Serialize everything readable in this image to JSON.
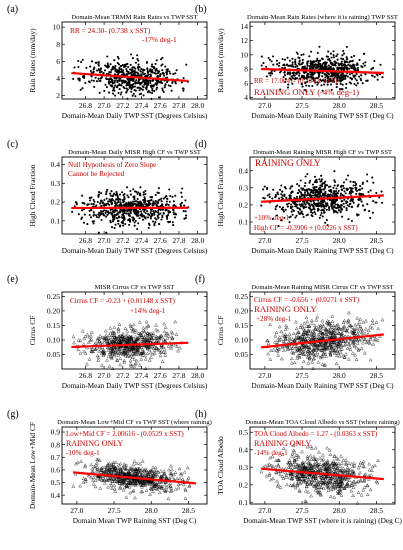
{
  "colors": {
    "fit_line": "#ff0000",
    "annotation": "#cc0000",
    "axis": "#000000",
    "marker": "#000000"
  },
  "chart_data": [
    {
      "panel": "(a)",
      "type": "scatter",
      "marker": "dot",
      "title": "Domain-Mean TRMM Rain Rates vs TWP SST",
      "xlabel": "Domain-Mean Daily TWP SST (Degrees Celsius)",
      "ylabel": "Rain Rates (mm/day)",
      "xlim": [
        26.55,
        28.1
      ],
      "ylim": [
        1.6,
        10.6
      ],
      "xticks": [
        "26.8",
        "27.0",
        "27.2",
        "27.4",
        "27.6",
        "27.8",
        "28.0"
      ],
      "yticks": [
        "2",
        "4",
        "6",
        "8",
        "10"
      ],
      "fit": {
        "intercept": 24.3,
        "slope": -0.738
      },
      "cloud": {
        "xc": 27.3,
        "xs": 0.25,
        "xmin": 26.65,
        "xmax": 27.9,
        "ys": 0.95,
        "n": 600,
        "seed": 11
      },
      "annotations": [
        "RR = 24.30- (0.738 x SST)",
        "-17% deg-1"
      ]
    },
    {
      "panel": "(b)",
      "type": "scatter",
      "marker": "dot",
      "title": "Domain-Mean Rain Rates (where it is raining) TWP SST",
      "xlabel": "Domain-Mean Daily Raining TWP SST (Deg C)",
      "ylabel": "Rain Rates (mm/day)",
      "xlim": [
        26.8,
        28.75
      ],
      "ylim": [
        3.8,
        14.6
      ],
      "xticks": [
        "27.0",
        "27.5",
        "28.0",
        "28.5"
      ],
      "yticks": [
        "4",
        "6",
        "8",
        "10",
        "12",
        "14"
      ],
      "fit": {
        "intercept": 17.0041,
        "slope": -0.334
      },
      "cloud": {
        "xc": 27.75,
        "xs": 0.33,
        "xmin": 26.95,
        "xmax": 28.6,
        "ys": 1.1,
        "n": 650,
        "seed": 23
      },
      "annotations": [
        "RR = 17.0041- (0.334 x SST)",
        "RAINING ONLY (-4% deg-1)"
      ]
    },
    {
      "panel": "(c)",
      "type": "scatter",
      "marker": "dot",
      "title": "Domain-Mean Daily MISR High CF vs TWP SST",
      "xlabel": "Domain-Mean Daily TWP SST (Degrees Celsius)",
      "ylabel": "High Cloud Fraction",
      "xlim": [
        26.55,
        28.1
      ],
      "ylim": [
        0.03,
        0.44
      ],
      "xticks": [
        "26.8",
        "27.0",
        "27.2",
        "27.4",
        "27.6",
        "27.8",
        "28.0"
      ],
      "yticks": [
        "0.1",
        "0.2",
        "0.3",
        "0.4"
      ],
      "fit": {
        "intercept": 0.142,
        "slope": 0.001
      },
      "cloud": {
        "xc": 27.3,
        "xs": 0.25,
        "xmin": 26.65,
        "xmax": 27.9,
        "ys": 0.045,
        "n": 600,
        "seed": 37
      },
      "annotations": [
        "Null Hypothesis of Zero Slope",
        "Cannot be Rejected"
      ]
    },
    {
      "panel": "(d)",
      "type": "scatter",
      "marker": "dot",
      "title": "Domain-Mean Raining MISR High CF vs TWP SST",
      "xlabel": "Domain-Mean Daily Raining TWP SST (Deg C)",
      "ylabel": "High Cloud Fraction",
      "xlim": [
        26.8,
        28.75
      ],
      "ylim": [
        0.03,
        0.48
      ],
      "xticks": [
        "27.0",
        "27.5",
        "28.0",
        "28.5"
      ],
      "yticks": [
        "0.1",
        "0.2",
        "0.3",
        "0.4"
      ],
      "fit": {
        "intercept": -0.3906,
        "slope": 0.0226
      },
      "cloud": {
        "xc": 27.75,
        "xs": 0.33,
        "xmin": 26.95,
        "xmax": 28.6,
        "ys": 0.055,
        "n": 650,
        "seed": 41
      },
      "annotations": [
        "RAINING ONLY",
        "+10% deg-1",
        "High CF = -0.3906 + (0.0226 x SST)"
      ]
    },
    {
      "panel": "(e)",
      "type": "scatter",
      "marker": "triangle",
      "title": "MISR Cirrus CF vs TWP SST",
      "xlabel": "Domain-Mean Daily TWP SST (Degrees Celsius)",
      "ylabel": "Cirrus CF",
      "xlim": [
        26.55,
        28.1
      ],
      "ylim": [
        0.0,
        0.265
      ],
      "xticks": [
        "26.8",
        "27.0",
        "27.2",
        "27.4",
        "27.6",
        "27.8",
        "28.0"
      ],
      "yticks": [
        "0.05",
        "0.10",
        "0.15",
        "0.20",
        "0.25"
      ],
      "fit": {
        "intercept": -0.23,
        "slope": 0.01148
      },
      "cloud": {
        "xc": 27.3,
        "xs": 0.25,
        "xmin": 26.65,
        "xmax": 27.9,
        "ys": 0.028,
        "n": 600,
        "seed": 53
      },
      "annotations": [
        "Cirrus CF = -0.23 + (0.01148 x SST)",
        "+14% deg-1"
      ]
    },
    {
      "panel": "(f)",
      "type": "scatter",
      "marker": "triangle",
      "title": "Domain-Mean Raining MISR Cirrus CF vs TWP SST",
      "xlabel": "Domain-Mean Daily Raining TWP SST (Deg C)",
      "ylabel": "Cirrus CF",
      "xlim": [
        26.8,
        28.75
      ],
      "ylim": [
        0.0,
        0.265
      ],
      "xticks": [
        "27.0",
        "27.5",
        "28.0",
        "28.5"
      ],
      "yticks": [
        "0.05",
        "0.10",
        "0.15",
        "0.20",
        "0.25"
      ],
      "fit": {
        "intercept": -0.656,
        "slope": 0.0271
      },
      "cloud": {
        "xc": 27.75,
        "xs": 0.33,
        "xmin": 26.95,
        "xmax": 28.6,
        "ys": 0.032,
        "n": 650,
        "seed": 67
      },
      "annotations": [
        "Cirrus CF = -0.656 + (0.0271 x SST)",
        "RAINING ONLY",
        "+28% deg-1"
      ]
    },
    {
      "panel": "(g)",
      "type": "scatter",
      "marker": "triangle",
      "title": "Domain-Mean Low+Mid CF vs TWP SST (where raining)",
      "xlabel": "Domain Mean TWP Raining SST (Deg C)",
      "ylabel": "Domain-Mean Low+Mid CF",
      "xlim": [
        26.8,
        28.75
      ],
      "ylim": [
        0.33,
        0.94
      ],
      "xticks": [
        "27.0",
        "27.5",
        "28.0",
        "28.5"
      ],
      "yticks": [
        "0.4",
        "0.5",
        "0.6",
        "0.7",
        "0.8",
        "0.9"
      ],
      "fit": {
        "intercept": 2.00616,
        "slope": -0.0529
      },
      "cloud": {
        "xc": 27.75,
        "xs": 0.33,
        "xmin": 26.95,
        "xmax": 28.6,
        "ys": 0.05,
        "n": 650,
        "seed": 71
      },
      "annotations": [
        "Low+Mid CF = 2.00616 - (0.0529 x SST)",
        "RAINING ONLY",
        "-10% deg-1"
      ]
    },
    {
      "panel": "(h)",
      "type": "scatter",
      "marker": "triangle",
      "title": "Domain-Mean TOA Cloud Albedo vs SST (where raining)",
      "xlabel": "Domain-Mean TWP SST (where it is raining) (Deg C)",
      "ylabel": "TOA Cloud Albedo",
      "xlim": [
        26.8,
        28.75
      ],
      "ylim": [
        0.09,
        0.53
      ],
      "xticks": [
        "27.0",
        "27.5",
        "28.0",
        "28.5"
      ],
      "yticks": [
        "0.1",
        "0.2",
        "0.3",
        "0.4",
        "0.5"
      ],
      "fit": {
        "intercept": 1.27,
        "slope": -0.0363
      },
      "cloud": {
        "xc": 27.75,
        "xs": 0.33,
        "xmin": 26.95,
        "xmax": 28.6,
        "ys": 0.055,
        "n": 650,
        "seed": 89
      },
      "annotations": [
        "TOA Cloud Albedo = 1.27 - (0.0363 x SST)",
        "RAINING ONLY",
        "-14% deg-1"
      ]
    }
  ]
}
